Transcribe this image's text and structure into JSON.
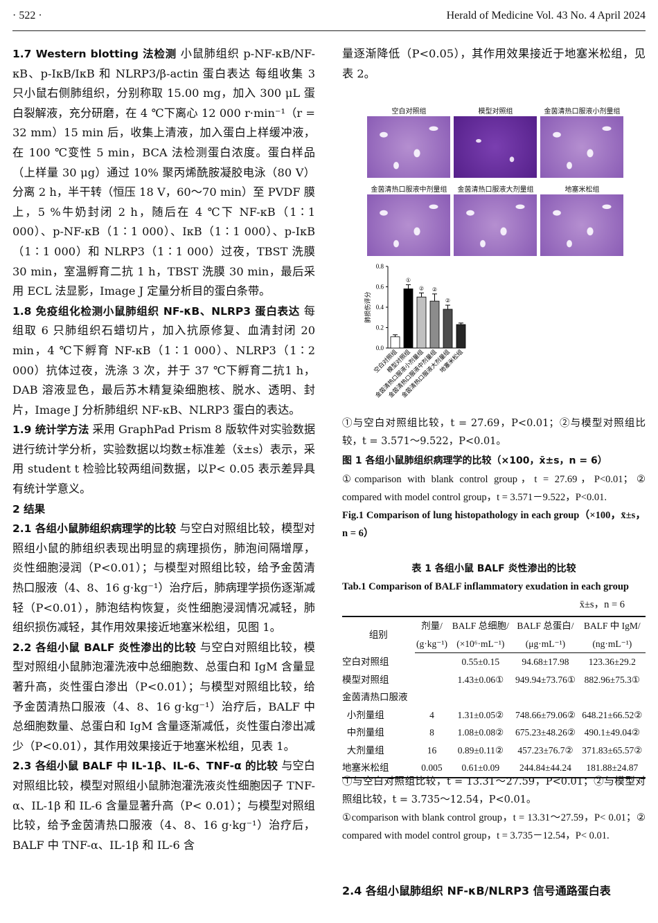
{
  "header": {
    "page": "· 522 ·",
    "journal": "Herald of Medicine Vol. 43 No. 4 April 2024"
  },
  "left": [
    {
      "head": "1.7  Western blotting 法检测",
      "text": "  小鼠肺组织 p-NF-κB/NF-κB、p-IκB/IκB 和 NLRP3/β-actin 蛋白表达 每组收集 3 只小鼠右侧肺组织，分别称取 15.00 mg，加入 300 μL 蛋白裂解液，充分研磨，在 4 ℃下离心 12 000 r·min⁻¹（r = 32 mm）15 min 后，收集上清液，加入蛋白上样缓冲液，在 100 ℃变性 5 min，BCA 法检测蛋白浓度。蛋白样品（上样量 30 μg）通过 10% 聚丙烯酰胺凝胶电泳（80 V）分离 2 h，半干转（恒压 18 V，60～70 min）至 PVDF 膜上，5 %牛奶封闭 2 h，随后在 4 ℃下 NF-κB（1∶1 000）、p-NF-κB（1∶1 000）、IκB（1∶1 000）、p-IκB（1∶1 000）和 NLRP3（1∶1 000）过夜，TBST 洗膜30 min，室温孵育二抗 1 h，TBST 洗膜 30 min，最后采用 ECL 法显影，Image J 定量分析目的蛋白条带。"
    },
    {
      "head": "1.8  免疫组化检测小鼠肺组织 NF-κB、NLRP3 蛋白表达",
      "text": "  每组取 6 只肺组织石蜡切片，加入抗原修复、血清封闭 20 min，4 ℃下孵育 NF-κB（1∶1 000）、NLRP3（1∶2 000）抗体过夜，洗涤 3 次，并于 37 ℃下孵育二抗1 h，DAB 溶液显色，最后苏木精复染细胞核、脱水、透明、封片，Image J 分析肺组织 NF-κB、NLRP3 蛋白的表达。"
    },
    {
      "head": "1.9  统计学方法",
      "text": "  采用 GraphPad Prism 8 版软件对实验数据进行统计学分析，实验数据以均数±标准差（x̄±s）表示，采用 student t 检验比较两组间数据，以P< 0.05 表示差异具有统计学意义。"
    },
    {
      "head": "2  结果",
      "text": ""
    },
    {
      "head": "2.1  各组小鼠肺组织病理学的比较",
      "text": "  与空白对照组比较，模型对照组小鼠的肺组织表现出明显的病理损伤，肺泡间隔增厚，炎性细胞浸润（P<0.01）；与模型对照组比较，给予金茵清热口服液（4、8、16 g·kg⁻¹）治疗后，肺病理学损伤逐渐减轻（P<0.01），肺泡结构恢复，炎性细胞浸润情况减轻，肺组织损伤减轻，其作用效果接近地塞米松组，见图 1。"
    },
    {
      "head": "2.2  各组小鼠 BALF 炎性渗出的比较",
      "text": "  与空白对照组比较，模型对照组小鼠肺泡灌洗液中总细胞数、总蛋白和 IgM 含量显著升高，炎性蛋白渗出（P<0.01）；与模型对照组比较，给予金茵清热口服液（4、8、16 g·kg⁻¹）治疗后，BALF 中总细胞数量、总蛋白和 IgM 含量逐渐减低，炎性蛋白渗出减少（P<0.01），其作用效果接近于地塞米松组，见表 1。"
    },
    {
      "head": "2.3  各组小鼠 BALF 中 IL-1β、IL-6、TNF-α 的比较",
      "text": "  与空白对照组比较，模型对照组小鼠肺泡灌洗液炎性细胞因子 TNF-α、IL-1β 和 IL-6 含量显著升高（P< 0.01）；与模型对照组比较，给予金茵清热口服液（4、8、16 g·kg⁻¹）治疗后，BALF 中 TNF-α、IL-1β 和 IL-6 含"
    }
  ],
  "right_top": "量逐渐降低（P<0.05），其作用效果接近于地塞米松组，见表 2。",
  "figure": {
    "panels": [
      "空白对照组",
      "模型对照组",
      "金茵清热口服液小剂量组",
      "金茵清热口服液中剂量组",
      "金茵清热口服液大剂量组",
      "地塞米松组"
    ],
    "dense": [
      false,
      true,
      false,
      false,
      false,
      false
    ]
  },
  "chart_data": {
    "type": "bar",
    "ylabel": "肺损伤评分",
    "ylim": [
      0,
      0.8
    ],
    "yticks": [
      "0.0",
      "0.2",
      "0.4",
      "0.6",
      "0.8"
    ],
    "categories": [
      "空白对照组",
      "模型对照组",
      "金茵清热口服液小剂量组",
      "金茵清热口服液中剂量组",
      "金茵清热口服液大剂量组",
      "地塞米松组"
    ],
    "values": [
      0.11,
      0.58,
      0.5,
      0.46,
      0.38,
      0.23
    ],
    "errors": [
      0.02,
      0.04,
      0.04,
      0.07,
      0.04,
      0.015
    ],
    "annotations": [
      "",
      "①",
      "②",
      "②",
      "②",
      ""
    ],
    "colors": [
      "#ffffff",
      "#000000",
      "#c0c0c0",
      "#8c8c8c",
      "#4d4d4d",
      "#262626"
    ]
  },
  "fig_note_cn": "①与空白对照组比较，t = 27.69，P<0.01；②与模型对照组比较，t = 3.571～9.522，P<0.01。",
  "fig_caption_cn": "图 1  各组小鼠肺组织病理学的比较（×100，x̄±s，n = 6）",
  "fig_note_en": "①comparison with blank control group，t = 27.69，P<0.01；② compared with model control group，t = 3.571－9.522，P<0.01.",
  "fig_caption_en": "Fig.1  Comparison of lung histopathology in each group（×100，x̄±s，n = 6）",
  "table": {
    "title_cn": "表 1  各组小鼠 BALF 炎性渗出的比较",
    "title_en": "Tab.1  Comparison of BALF inflammatory exudation in each group",
    "stat": "x̄±s，n = 6",
    "headers1": [
      "组别",
      "剂量/",
      "BALF 总细胞/",
      "BALF 总蛋白/",
      "BALF 中 IgM/"
    ],
    "headers2": [
      "(g·kg⁻¹)",
      "(×10⁶·mL⁻¹)",
      "(μg·mL⁻¹)",
      "(ng·mL⁻¹)"
    ],
    "rows": [
      [
        "空白对照组",
        "",
        "0.55±0.15",
        "94.68±17.98",
        "123.36±29.2"
      ],
      [
        "模型对照组",
        "",
        "1.43±0.06①",
        "949.94±73.76①",
        "882.96±75.3①"
      ],
      [
        "金茵清热口服液",
        "",
        "",
        "",
        ""
      ],
      [
        "  小剂量组",
        "4",
        "1.31±0.05②",
        "748.66±79.06②",
        "648.21±66.52②"
      ],
      [
        "  中剂量组",
        "8",
        "1.08±0.08②",
        "675.23±48.26②",
        "490.1±49.04②"
      ],
      [
        "  大剂量组",
        "16",
        "0.89±0.11②",
        "457.23±76.7②",
        "371.83±65.57②"
      ],
      [
        "地塞米松组",
        "0.005",
        "0.61±0.09",
        "244.84±44.24",
        "181.88±24.87"
      ]
    ],
    "note_cn": "①与空白对照组比较，t = 13.31～27.59，P<0.01；②与模型对照组比较，t = 3.735～12.54，P<0.01。",
    "note_en": "①comparison with blank control group，t = 13.31～27.59，P< 0.01；② compared with model control group，t = 3.735－12.54，P< 0.01."
  },
  "next_head": "2.4  各组小鼠肺组织 NF-κB/NLRP3 信号通路蛋白表"
}
